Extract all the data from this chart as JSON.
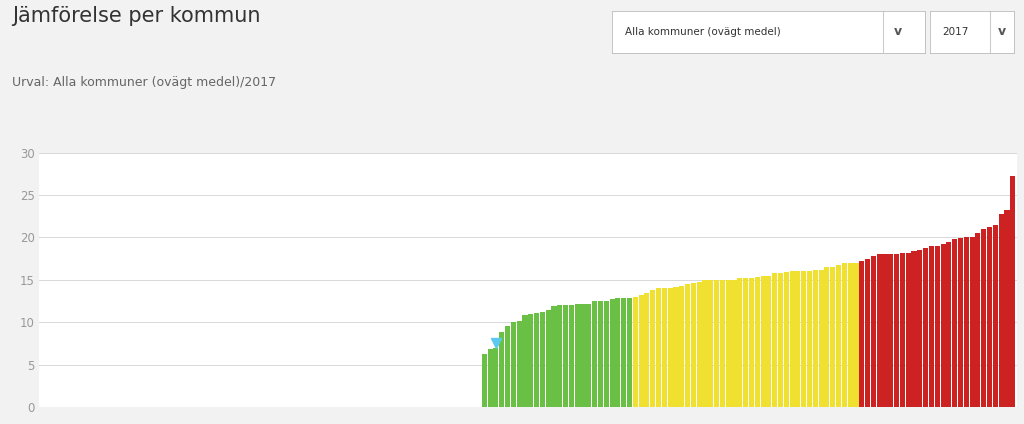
{
  "title": "Jämförelse per kommun",
  "subtitle": "Urval: Alla kommuner (ovägt medel)/2017",
  "background_color": "#f2f2f2",
  "plot_background_color": "#ffffff",
  "title_fontsize": 15,
  "subtitle_fontsize": 9,
  "ylim": [
    0,
    30
  ],
  "yticks": [
    0,
    5,
    10,
    15,
    20,
    25,
    30
  ],
  "grid_color": "#d8d8d8",
  "color_green": "#6abf45",
  "color_yellow": "#f0e030",
  "color_red": "#cc2222",
  "marker_color": "#5bc8f0",
  "marker_bar_index": 78,
  "green_threshold": 13.0,
  "yellow_threshold": 17.1,
  "values": [
    0,
    0,
    0,
    0,
    0,
    0,
    0,
    0,
    0,
    0,
    0,
    0,
    0,
    0,
    0,
    0,
    0,
    0,
    0,
    0,
    0,
    0,
    0,
    0,
    0,
    0,
    0,
    0,
    0,
    0,
    0,
    0,
    0,
    0,
    0,
    0,
    0,
    0,
    0,
    0,
    0,
    0,
    0,
    0,
    0,
    0,
    0,
    0,
    0,
    0,
    0,
    0,
    0,
    0,
    0,
    0,
    0,
    0,
    0,
    0,
    0,
    0,
    0,
    0,
    0,
    0,
    0,
    0,
    0,
    0,
    0,
    0,
    0,
    0,
    0,
    0,
    6.2,
    6.8,
    7.0,
    8.9,
    9.5,
    10.0,
    10.2,
    10.9,
    11.0,
    11.1,
    11.2,
    11.5,
    11.9,
    12.0,
    12.0,
    12.0,
    12.1,
    12.2,
    12.2,
    12.5,
    12.5,
    12.5,
    12.7,
    12.8,
    12.8,
    12.9,
    13.0,
    13.2,
    13.5,
    13.8,
    14.0,
    14.0,
    14.0,
    14.2,
    14.3,
    14.5,
    14.6,
    14.8,
    15.0,
    15.0,
    15.0,
    15.0,
    15.0,
    15.0,
    15.2,
    15.2,
    15.2,
    15.3,
    15.5,
    15.5,
    15.8,
    15.8,
    15.9,
    16.0,
    16.0,
    16.0,
    16.1,
    16.2,
    16.2,
    16.5,
    16.5,
    16.8,
    17.0,
    17.0,
    17.0,
    17.2,
    17.5,
    17.8,
    18.0,
    18.0,
    18.0,
    18.0,
    18.2,
    18.2,
    18.4,
    18.5,
    18.8,
    19.0,
    19.0,
    19.2,
    19.5,
    19.8,
    19.9,
    20.0,
    20.0,
    20.5,
    21.0,
    21.2,
    21.5,
    22.8,
    23.2,
    27.2
  ],
  "dropdown_text": "Alla kommuner (ovägt medel)",
  "year_text": "2017"
}
